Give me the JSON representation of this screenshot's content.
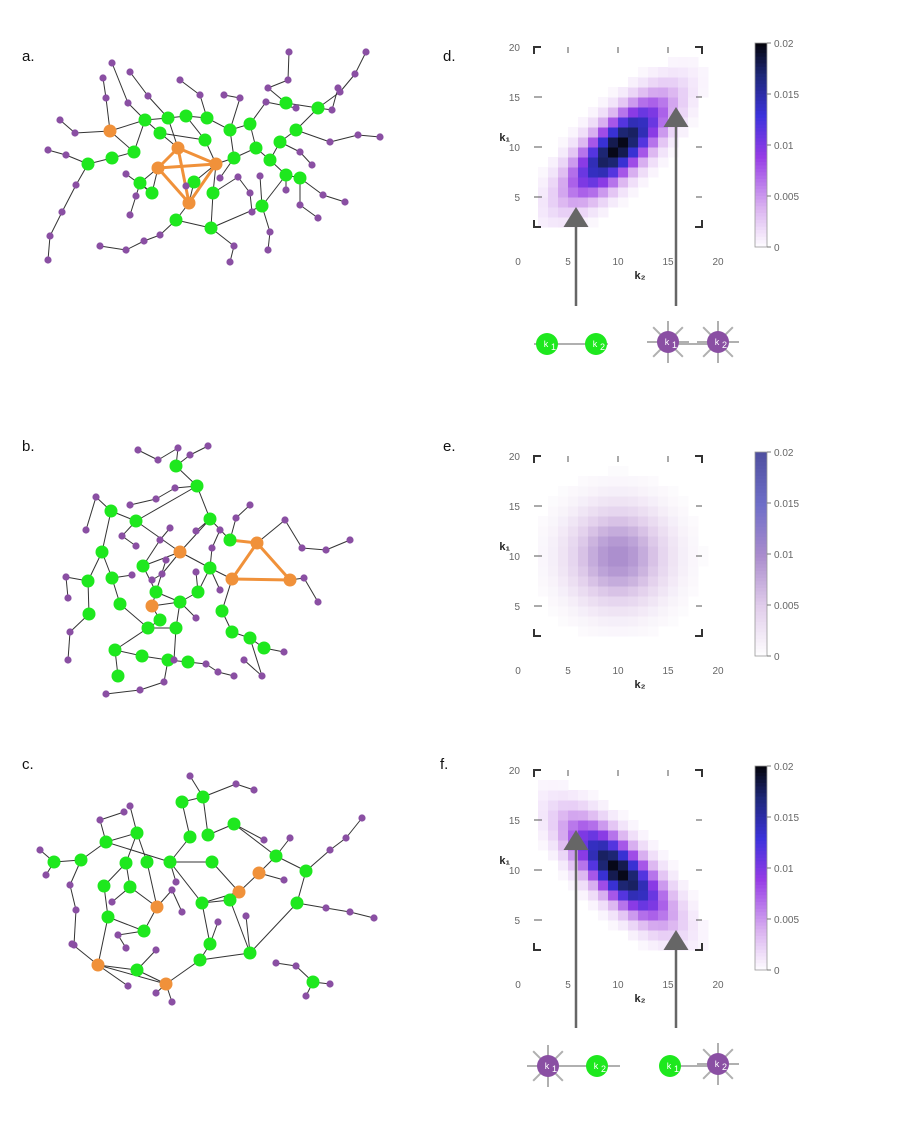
{
  "panels": {
    "a": "a.",
    "b": "b.",
    "c": "c.",
    "d": "d.",
    "e": "e.",
    "f": "f."
  },
  "colors": {
    "green": "#1ee81e",
    "purple": "#8a4fa3",
    "orange": "#f0913a",
    "edge": "#333333",
    "grey_edge": "#b0b0b0",
    "arrow": "#666666"
  },
  "chart_data": [
    {
      "panel": "d.",
      "type": "heatmap",
      "xlabel": "k₂",
      "ylabel": "k₁",
      "xlim": [
        0,
        20
      ],
      "ylim": [
        0,
        20
      ],
      "xticks": [
        "0",
        "5",
        "10",
        "15",
        "20"
      ],
      "yticks": [
        "5",
        "10",
        "15",
        "20"
      ],
      "colorbar_ticks": [
        "0",
        "0.005",
        "0.01",
        "0.015",
        "0.02"
      ],
      "colorbar_range": [
        0,
        0.02
      ],
      "peak": [
        10,
        10
      ],
      "correlation": "positive",
      "peak_value": 0.02,
      "annotations": [
        {
          "arrow_to": [
            5,
            4
          ],
          "motif": "k1-k2 low degree (green-green)"
        },
        {
          "arrow_to": [
            15,
            14
          ],
          "motif": "k1-k2 high degree (purple-purple)"
        }
      ]
    },
    {
      "panel": "e.",
      "type": "heatmap",
      "xlabel": "k₂",
      "ylabel": "k₁",
      "xlim": [
        0,
        20
      ],
      "ylim": [
        0,
        20
      ],
      "xticks": [
        "0",
        "5",
        "10",
        "15",
        "20"
      ],
      "yticks": [
        "5",
        "10",
        "15",
        "20"
      ],
      "colorbar_ticks": [
        "0",
        "0.005",
        "0.01",
        "0.015",
        "0.02"
      ],
      "colorbar_range": [
        0,
        0.02
      ],
      "peak": [
        10,
        10
      ],
      "correlation": "none",
      "peak_value": 0.01
    },
    {
      "panel": "f.",
      "type": "heatmap",
      "xlabel": "k₂",
      "ylabel": "k₁",
      "xlim": [
        0,
        20
      ],
      "ylim": [
        0,
        20
      ],
      "xticks": [
        "0",
        "5",
        "10",
        "15",
        "20"
      ],
      "yticks": [
        "5",
        "10",
        "15",
        "20"
      ],
      "colorbar_ticks": [
        "0",
        "0.005",
        "0.01",
        "0.015",
        "0.02"
      ],
      "colorbar_range": [
        0,
        0.02
      ],
      "peak": [
        10,
        10
      ],
      "correlation": "negative",
      "peak_value": 0.02,
      "annotations": [
        {
          "arrow_to": [
            5,
            14
          ],
          "motif": "high k1, low k2 (purple-green)"
        },
        {
          "arrow_to": [
            15,
            4
          ],
          "motif": "low k1, high k2 (green-purple)"
        }
      ]
    }
  ],
  "motif_labels": {
    "k1": "k",
    "k1_sub": "1",
    "k2": "k",
    "k2_sub": "2"
  }
}
